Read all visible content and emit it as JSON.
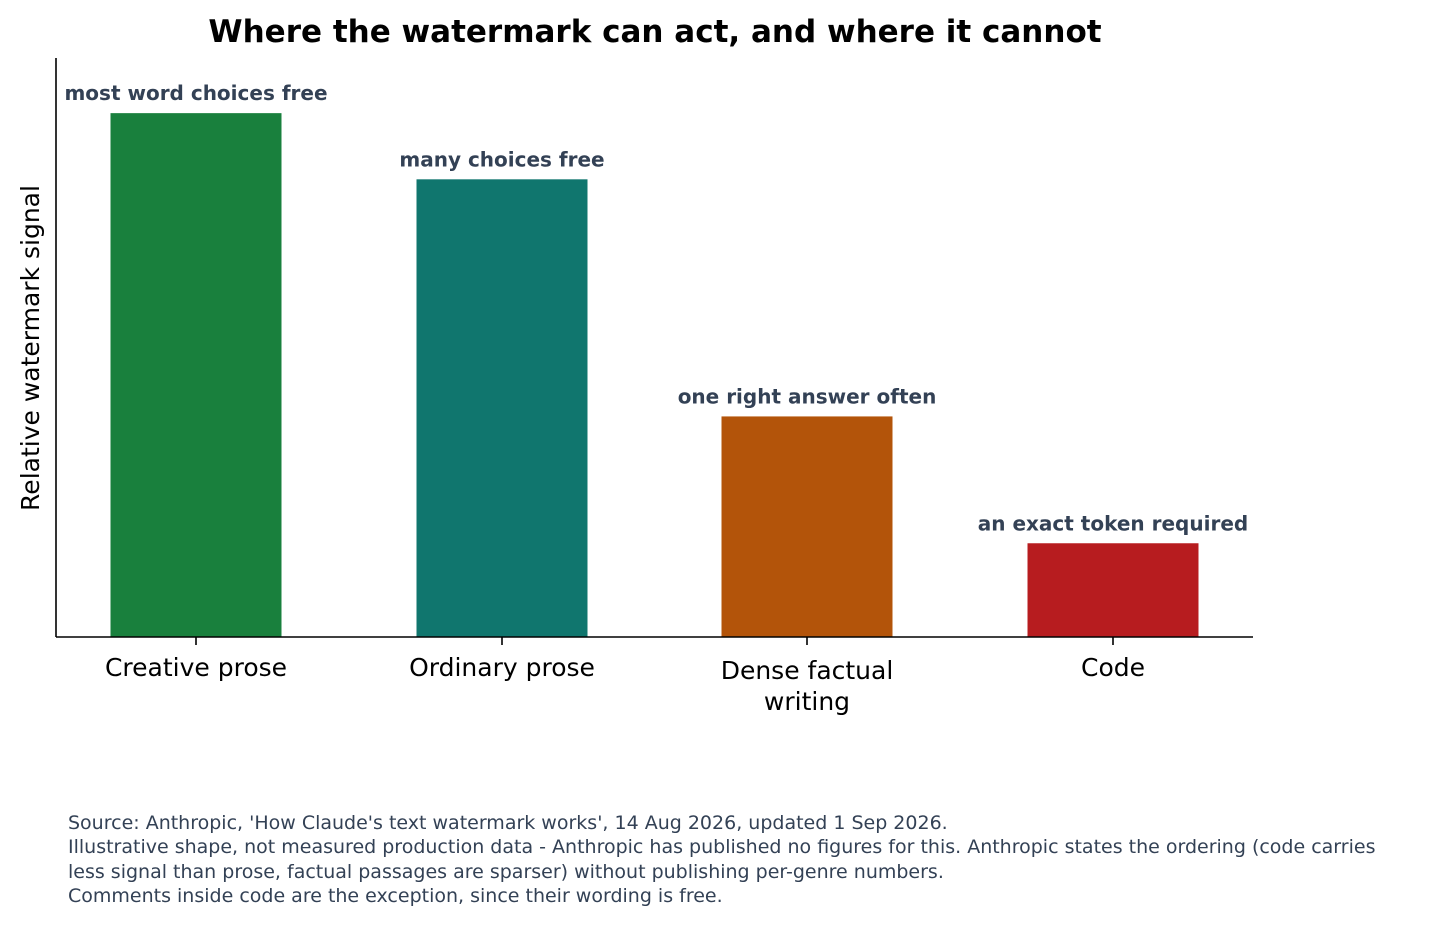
{
  "chart_data": {
    "type": "bar",
    "title": "Where the watermark can act, and where it cannot",
    "ylabel": "Relative watermark signal",
    "xlabel": "",
    "yaxis_ticks_shown": false,
    "grid": false,
    "legend": "none",
    "ylim": [
      0,
      1.05
    ],
    "categories": [
      [
        "Creative prose"
      ],
      [
        "Ordinary prose"
      ],
      [
        "Dense factual",
        "writing"
      ],
      [
        "Code"
      ]
    ],
    "values": [
      0.95,
      0.83,
      0.4,
      0.17
    ],
    "annotations": [
      "most word choices free",
      "many choices free",
      "one right answer often",
      "an exact token required"
    ],
    "colors": [
      "#19803d",
      "#10766e",
      "#b3540a",
      "#b71c1f"
    ]
  },
  "footnote": {
    "lines": [
      "Source: Anthropic, 'How Claude's text watermark works', 14 Aug 2026, updated 1 Sep 2026.",
      "Illustrative shape, not measured production data - Anthropic has published no figures for this. Anthropic states the ordering (code carries",
      "less signal than prose, factual passages are sparser) without publishing per-genre numbers.",
      "Comments inside code are the exception, since their wording is free."
    ]
  }
}
